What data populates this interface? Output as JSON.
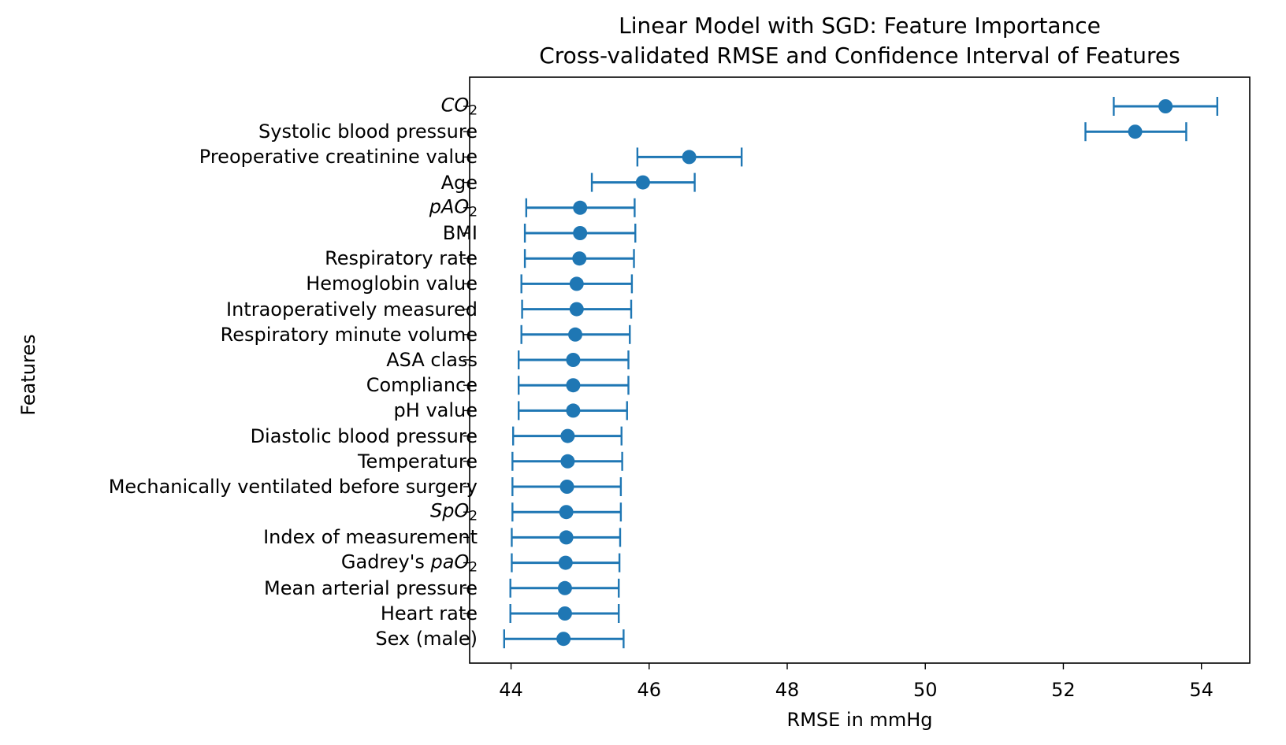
{
  "chart_data": {
    "type": "scatter",
    "title": "Linear Model with SGD: Feature Importance",
    "subtitle": "Cross-validated RMSE and Confidence Interval of Features",
    "xlabel": "RMSE in mmHg",
    "ylabel": "Features",
    "xlim": [
      43.4,
      54.7
    ],
    "xticks": [
      "44",
      "46",
      "48",
      "50",
      "52",
      "54"
    ],
    "grid": false,
    "color": "#1f77b4",
    "features": [
      {
        "label": "CO",
        "sub": "2",
        "italic": true,
        "prefix": "",
        "value": 53.48,
        "lower": 52.73,
        "upper": 54.23
      },
      {
        "label": "Systolic blood pressure",
        "value": 53.04,
        "lower": 52.32,
        "upper": 53.78
      },
      {
        "label": "Preoperative creatinine value",
        "value": 46.58,
        "lower": 45.83,
        "upper": 47.34
      },
      {
        "label": "Age",
        "value": 45.91,
        "lower": 45.17,
        "upper": 46.66
      },
      {
        "label": "pAO",
        "sub": "2",
        "italic": true,
        "prefix": "",
        "value": 45.0,
        "lower": 44.22,
        "upper": 45.79
      },
      {
        "label": "BMI",
        "value": 45.0,
        "lower": 44.2,
        "upper": 45.8
      },
      {
        "label": "Respiratory rate",
        "value": 44.99,
        "lower": 44.2,
        "upper": 45.78
      },
      {
        "label": "Hemoglobin value",
        "value": 44.95,
        "lower": 44.15,
        "upper": 45.75
      },
      {
        "label": "Intraoperatively measured",
        "value": 44.95,
        "lower": 44.16,
        "upper": 45.74
      },
      {
        "label": "Respiratory minute volume",
        "value": 44.93,
        "lower": 44.15,
        "upper": 45.72
      },
      {
        "label": "ASA class",
        "value": 44.9,
        "lower": 44.11,
        "upper": 45.7
      },
      {
        "label": "Compliance",
        "value": 44.9,
        "lower": 44.11,
        "upper": 45.7
      },
      {
        "label": "pH value",
        "value": 44.9,
        "lower": 44.11,
        "upper": 45.68
      },
      {
        "label": "Diastolic blood pressure",
        "value": 44.82,
        "lower": 44.03,
        "upper": 45.6
      },
      {
        "label": "Temperature",
        "value": 44.82,
        "lower": 44.02,
        "upper": 45.61
      },
      {
        "label": "Mechanically ventilated before surgery",
        "value": 44.81,
        "lower": 44.02,
        "upper": 45.59
      },
      {
        "label": "SpO",
        "sub": "2",
        "italic": true,
        "prefix": "",
        "value": 44.8,
        "lower": 44.02,
        "upper": 45.59
      },
      {
        "label": "Index of measurement",
        "value": 44.8,
        "lower": 44.01,
        "upper": 45.58
      },
      {
        "label": "paO",
        "sub": "2",
        "italic": true,
        "prefix": "Gadrey's ",
        "value": 44.79,
        "lower": 44.01,
        "upper": 45.57
      },
      {
        "label": "Mean arterial pressure",
        "value": 44.78,
        "lower": 43.99,
        "upper": 45.56
      },
      {
        "label": "Heart rate",
        "value": 44.78,
        "lower": 43.99,
        "upper": 45.56
      },
      {
        "label": "Sex (male)",
        "value": 44.76,
        "lower": 43.9,
        "upper": 45.63
      }
    ]
  }
}
